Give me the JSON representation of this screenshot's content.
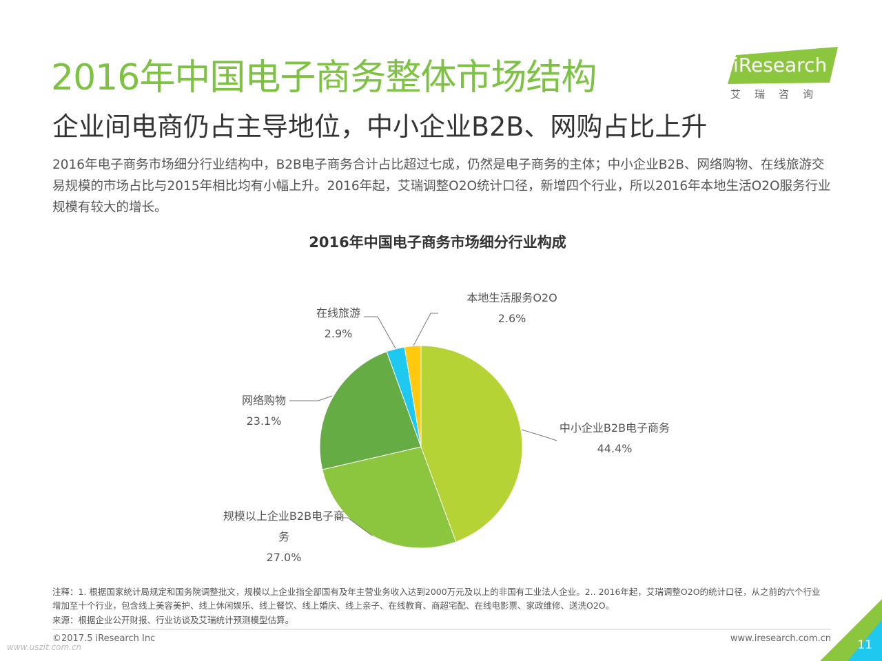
{
  "header": {
    "title": "2016年中国电子商务整体市场结构",
    "subtitle": "企业间电商仍占主导地位，中小企业B2B、网购占比上升",
    "paragraph": "2016年电子商务市场细分行业结构中，B2B电子商务合计占比超过七成，仍然是电子商务的主体；中小企业B2B、网络购物、在线旅游交易规模的市场占比与2015年相比均有小幅上升。2016年起，艾瑞调整O2O统计口径，新增四个行业，所以2016年本地生活O2O服务行业规模有较大的增长。"
  },
  "logo": {
    "text": "iResearch",
    "sub": "艾瑞咨询"
  },
  "chart_data": {
    "type": "pie",
    "title": "2016年中国电子商务市场细分行业构成",
    "categories": [
      "中小企业B2B电子商务",
      "规模以上企业B2B电子商务",
      "网络购物",
      "在线旅游",
      "本地生活服务O2O"
    ],
    "values": [
      44.4,
      27.0,
      23.1,
      2.9,
      2.6
    ],
    "value_labels": [
      "44.4%",
      "27.0%",
      "23.1%",
      "2.9%",
      "2.6%"
    ],
    "colors": [
      "#b5d334",
      "#8cc63f",
      "#66ac45",
      "#1ec8ef",
      "#ffc90e"
    ]
  },
  "footer": {
    "note": "注释：1. 根据国家统计局规定和国务院调整批文，规模以上企业指全部国有及年主营业务收入达到2000万元及以上的非国有工业法人企业。2.. 2016年起，艾瑞调整O2O的统计口径，从之前的六个行业增加至十个行业，包含线上美容美护、线上休闲娱乐、线上餐饮、线上婚庆、线上亲子、在线教育、商超宅配、在线电影票、家政维修、送洗O2O。",
    "source": "来源：根据企业公开财报、行业访谈及艾瑞统计预测模型估算。",
    "copyright": "©2017.5 iResearch Inc",
    "website": "www.iresearch.com.cn",
    "page": "11",
    "watermark": "www.uszit.com.cn"
  }
}
